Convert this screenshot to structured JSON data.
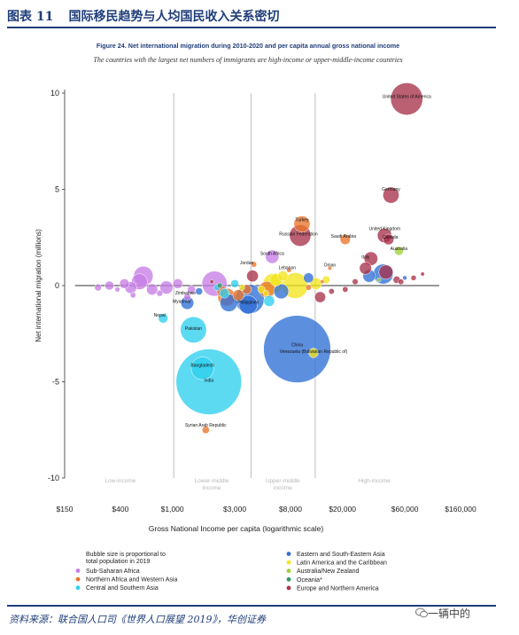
{
  "header": {
    "figure_number": "图表 11",
    "title": "国际移民趋势与人均国民收入关系密切"
  },
  "footer": {
    "source": "资料来源：联合国人口司《世界人口展望 2019》，华创证券",
    "watermark": "一辆中的"
  },
  "colors": {
    "brand": "#1f3d7a",
    "Sub-Saharan Africa": "#c77ee6",
    "Northern Africa and Western Asia": "#e9752a",
    "Central and Southern Asia": "#2ed0ee",
    "Eastern and South-Eastern Asia": "#2f6fd6",
    "Latin America and the Caribbean": "#f2e41c",
    "Australia/New Zealand": "#9ed236",
    "Oceania*": "#2e9b5f",
    "Europe and Northern America": "#a8324a"
  },
  "chart_data": {
    "type": "scatter",
    "title": "Figure 24. Net international migration during 2010-2020 and per capita annual gross national income",
    "subtitle": "The countries with the largest net numbers of immigrants are high-income or upper-middle-income countries",
    "xlabel": "Gross National Income per capita (logarithmic scale)",
    "ylabel": "Net international migration (millions)",
    "x_scale": "log",
    "xlim": [
      150,
      160000
    ],
    "ylim": [
      -10,
      10
    ],
    "x_ticks": [
      {
        "value": 150,
        "label": "$150"
      },
      {
        "value": 400,
        "label": "$400"
      },
      {
        "value": 1000,
        "label": "$1,000"
      },
      {
        "value": 3000,
        "label": "$3,000"
      },
      {
        "value": 8000,
        "label": "$8,000"
      },
      {
        "value": 20000,
        "label": "$20,000"
      },
      {
        "value": 60000,
        "label": "$60,000"
      },
      {
        "value": 160000,
        "label": "$160,000"
      }
    ],
    "y_ticks": [
      {
        "value": 10,
        "label": "10"
      },
      {
        "value": 5,
        "label": "5"
      },
      {
        "value": 0,
        "label": "0"
      },
      {
        "value": -5,
        "label": "-5"
      },
      {
        "value": -10,
        "label": "-10"
      }
    ],
    "income_thresholds": [
      1025,
      3995,
      12375
    ],
    "income_groups": [
      {
        "label": "Low-income",
        "x": 400
      },
      {
        "label": "Lower-middle\nincome",
        "x": 2000
      },
      {
        "label": "Upper-middle\nincome",
        "x": 7000
      },
      {
        "label": "High-income",
        "x": 35000
      }
    ],
    "legend_note": "Bubble size is proportional to\ntotal population in 2019",
    "legend": [
      {
        "name": "Sub-Saharan Africa",
        "column": 0
      },
      {
        "name": "Northern Africa and Western Asia",
        "column": 0
      },
      {
        "name": "Central and Southern Asia",
        "column": 0
      },
      {
        "name": "Eastern and South-Eastern Asia",
        "column": 1
      },
      {
        "name": "Latin America and the Caribbean",
        "column": 1
      },
      {
        "name": "Australia/New Zealand",
        "column": 1
      },
      {
        "name": "Oceania*",
        "column": 1
      },
      {
        "name": "Europe and Northern America",
        "column": 1
      }
    ],
    "points": [
      {
        "label": "United States of America",
        "x": 62000,
        "y": 9.7,
        "pop": 330,
        "region": "Europe and Northern America"
      },
      {
        "label": "Germany",
        "x": 47000,
        "y": 4.7,
        "pop": 83,
        "region": "Europe and Northern America"
      },
      {
        "label": "Turkey",
        "x": 9800,
        "y": 3.2,
        "pop": 83,
        "region": "Northern Africa and Western Asia"
      },
      {
        "label": "Russian Federation",
        "x": 9500,
        "y": 2.6,
        "pop": 146,
        "region": "Europe and Northern America"
      },
      {
        "label": "Saudi Arabia",
        "x": 21000,
        "y": 2.4,
        "pop": 34,
        "region": "Northern Africa and Western Asia"
      },
      {
        "label": "United Kingdom",
        "x": 42000,
        "y": 2.6,
        "pop": 67,
        "region": "Europe and Northern America"
      },
      {
        "label": "Canada",
        "x": 45000,
        "y": 2.4,
        "pop": 37,
        "region": "Europe and Northern America"
      },
      {
        "label": "Australia",
        "x": 54000,
        "y": 1.8,
        "pop": 25,
        "region": "Australia/New Zealand"
      },
      {
        "label": "South Africa",
        "x": 5800,
        "y": 1.5,
        "pop": 58,
        "region": "Sub-Saharan Africa"
      },
      {
        "label": "Italy",
        "x": 33000,
        "y": 1.4,
        "pop": 60,
        "region": "Europe and Northern America"
      },
      {
        "label": "Jordan",
        "x": 4200,
        "y": 1.1,
        "pop": 10,
        "region": "Northern Africa and Western Asia"
      },
      {
        "label": "Lebanon",
        "x": 7800,
        "y": 0.8,
        "pop": 7,
        "region": "Northern Africa and Western Asia"
      },
      {
        "label": "Oman",
        "x": 16000,
        "y": 0.9,
        "pop": 5,
        "region": "Northern Africa and Western Asia"
      },
      {
        "label": "Zimbabwe",
        "x": 1300,
        "y": -0.6,
        "pop": 15,
        "region": "Sub-Saharan Africa"
      },
      {
        "label": "Myanmar",
        "x": 1300,
        "y": -0.9,
        "pop": 54,
        "region": "Eastern and South-Eastern Asia"
      },
      {
        "label": "Nepal",
        "x": 850,
        "y": -1.7,
        "pop": 29,
        "region": "Central and Southern Asia"
      },
      {
        "label": "Philippines",
        "x": 3800,
        "y": -1.0,
        "pop": 108,
        "region": "Eastern and South-Eastern Asia"
      },
      {
        "label": "Pakistan",
        "x": 1450,
        "y": -2.3,
        "pop": 217,
        "region": "Central and Southern Asia"
      },
      {
        "label": "China",
        "x": 9000,
        "y": -3.3,
        "pop": 1434,
        "region": "Eastern and South-Eastern Asia"
      },
      {
        "label": "Venezuela (Bolivarian Republic of)",
        "x": 12000,
        "y": -3.5,
        "pop": 29,
        "region": "Latin America and the Caribbean"
      },
      {
        "label": "Bangladesh",
        "x": 1700,
        "y": -4.3,
        "pop": 163,
        "region": "Central and Southern Asia"
      },
      {
        "label": "India",
        "x": 1900,
        "y": -5.0,
        "pop": 1366,
        "region": "Central and Southern Asia"
      },
      {
        "label": "Syrian Arab Republic",
        "x": 1800,
        "y": -7.5,
        "pop": 17,
        "region": "Northern Africa and Western Asia"
      },
      {
        "label": "",
        "x": 600,
        "y": 0.5,
        "pop": 120,
        "region": "Sub-Saharan Africa"
      },
      {
        "label": "",
        "x": 560,
        "y": 0.2,
        "pop": 80,
        "region": "Sub-Saharan Africa"
      },
      {
        "label": "",
        "x": 430,
        "y": 0.1,
        "pop": 30,
        "region": "Sub-Saharan Africa"
      },
      {
        "label": "",
        "x": 330,
        "y": 0.0,
        "pop": 25,
        "region": "Sub-Saharan Africa"
      },
      {
        "label": "",
        "x": 270,
        "y": -0.1,
        "pop": 15,
        "region": "Sub-Saharan Africa"
      },
      {
        "label": "",
        "x": 480,
        "y": -0.1,
        "pop": 45,
        "region": "Sub-Saharan Africa"
      },
      {
        "label": "",
        "x": 700,
        "y": -0.2,
        "pop": 40,
        "region": "Sub-Saharan Africa"
      },
      {
        "label": "",
        "x": 900,
        "y": -0.1,
        "pop": 55,
        "region": "Sub-Saharan Africa"
      },
      {
        "label": "",
        "x": 1100,
        "y": 0.1,
        "pop": 30,
        "region": "Sub-Saharan Africa"
      },
      {
        "label": "",
        "x": 1400,
        "y": -0.2,
        "pop": 20,
        "region": "Sub-Saharan Africa"
      },
      {
        "label": "",
        "x": 2100,
        "y": 0.1,
        "pop": 200,
        "region": "Sub-Saharan Africa"
      },
      {
        "label": "",
        "x": 800,
        "y": -0.4,
        "pop": 12,
        "region": "Sub-Saharan Africa"
      },
      {
        "label": "",
        "x": 500,
        "y": -0.5,
        "pop": 10,
        "region": "Sub-Saharan Africa"
      },
      {
        "label": "",
        "x": 380,
        "y": -0.2,
        "pop": 8,
        "region": "Sub-Saharan Africa"
      },
      {
        "label": "",
        "x": 2600,
        "y": -0.6,
        "pop": 100,
        "region": "Northern Africa and Western Asia"
      },
      {
        "label": "",
        "x": 3200,
        "y": -0.5,
        "pop": 40,
        "region": "Northern Africa and Western Asia"
      },
      {
        "label": "",
        "x": 2400,
        "y": -0.3,
        "pop": 35,
        "region": "Northern Africa and Western Asia"
      },
      {
        "label": "",
        "x": 3700,
        "y": -0.2,
        "pop": 30,
        "region": "Northern Africa and Western Asia"
      },
      {
        "label": "",
        "x": 5300,
        "y": -0.2,
        "pop": 83,
        "region": "Northern Africa and Western Asia"
      },
      {
        "label": "",
        "x": 11000,
        "y": -0.1,
        "pop": 10,
        "region": "Northern Africa and Western Asia"
      },
      {
        "label": "",
        "x": 14000,
        "y": 0.2,
        "pop": 4,
        "region": "Northern Africa and Western Asia"
      },
      {
        "label": "",
        "x": 2200,
        "y": -0.1,
        "pop": 12,
        "region": "Central and Southern Asia"
      },
      {
        "label": "",
        "x": 2500,
        "y": -0.4,
        "pop": 30,
        "region": "Central and Southern Asia"
      },
      {
        "label": "",
        "x": 5500,
        "y": -0.8,
        "pop": 38,
        "region": "Central and Southern Asia"
      },
      {
        "label": "",
        "x": 3000,
        "y": 0.1,
        "pop": 20,
        "region": "Central and Southern Asia"
      },
      {
        "label": "",
        "x": 2700,
        "y": -0.9,
        "pop": 97,
        "region": "Eastern and South-Eastern Asia"
      },
      {
        "label": "",
        "x": 3900,
        "y": -0.7,
        "pop": 270,
        "region": "Eastern and South-Eastern Asia"
      },
      {
        "label": "",
        "x": 6800,
        "y": -0.3,
        "pop": 70,
        "region": "Eastern and South-Eastern Asia"
      },
      {
        "label": "",
        "x": 11000,
        "y": 0.4,
        "pop": 32,
        "region": "Eastern and South-Eastern Asia"
      },
      {
        "label": "",
        "x": 32000,
        "y": 0.5,
        "pop": 51,
        "region": "Eastern and South-Eastern Asia"
      },
      {
        "label": "",
        "x": 41000,
        "y": 0.6,
        "pop": 126,
        "region": "Eastern and South-Eastern Asia"
      },
      {
        "label": "",
        "x": 60000,
        "y": 0.4,
        "pop": 6,
        "region": "Eastern and South-Eastern Asia"
      },
      {
        "label": "",
        "x": 1600,
        "y": -0.3,
        "pop": 16,
        "region": "Eastern and South-Eastern Asia"
      },
      {
        "label": "",
        "x": 5900,
        "y": 0.1,
        "pop": 130,
        "region": "Latin America and the Caribbean"
      },
      {
        "label": "",
        "x": 8700,
        "y": 0.0,
        "pop": 211,
        "region": "Latin America and the Caribbean"
      },
      {
        "label": "",
        "x": 6200,
        "y": 0.3,
        "pop": 50,
        "region": "Latin America and the Caribbean"
      },
      {
        "label": "",
        "x": 12500,
        "y": 0.1,
        "pop": 45,
        "region": "Latin America and the Caribbean"
      },
      {
        "label": "",
        "x": 4800,
        "y": -0.2,
        "pop": 17,
        "region": "Latin America and the Caribbean"
      },
      {
        "label": "",
        "x": 3400,
        "y": -0.1,
        "pop": 11,
        "region": "Latin America and the Caribbean"
      },
      {
        "label": "",
        "x": 15000,
        "y": 0.3,
        "pop": 19,
        "region": "Latin America and the Caribbean"
      },
      {
        "label": "",
        "x": 7000,
        "y": 0.5,
        "pop": 33,
        "region": "Latin America and the Caribbean"
      },
      {
        "label": "",
        "x": 5200,
        "y": -0.4,
        "pop": 11,
        "region": "Latin America and the Caribbean"
      },
      {
        "label": "",
        "x": 2300,
        "y": 0.0,
        "pop": 9,
        "region": "Oceania*"
      },
      {
        "label": "",
        "x": 38000,
        "y": 0.3,
        "pop": 5,
        "region": "Australia/New Zealand"
      },
      {
        "label": "",
        "x": 4100,
        "y": 0.5,
        "pop": 44,
        "region": "Europe and Northern America"
      },
      {
        "label": "",
        "x": 13500,
        "y": -0.6,
        "pop": 38,
        "region": "Europe and Northern America"
      },
      {
        "label": "",
        "x": 16500,
        "y": -0.3,
        "pop": 10,
        "region": "Europe and Northern America"
      },
      {
        "label": "",
        "x": 21000,
        "y": -0.2,
        "pop": 10,
        "region": "Europe and Northern America"
      },
      {
        "label": "",
        "x": 30000,
        "y": 0.9,
        "pop": 47,
        "region": "Europe and Northern America"
      },
      {
        "label": "",
        "x": 43000,
        "y": 0.7,
        "pop": 65,
        "region": "Europe and Northern America"
      },
      {
        "label": "",
        "x": 52000,
        "y": 0.3,
        "pop": 17,
        "region": "Europe and Northern America"
      },
      {
        "label": "",
        "x": 56000,
        "y": 0.2,
        "pop": 10,
        "region": "Europe and Northern America"
      },
      {
        "label": "",
        "x": 70000,
        "y": 0.4,
        "pop": 9,
        "region": "Europe and Northern America"
      },
      {
        "label": "",
        "x": 82000,
        "y": 0.6,
        "pop": 5,
        "region": "Europe and Northern America"
      },
      {
        "label": "",
        "x": 25000,
        "y": 0.2,
        "pop": 11,
        "region": "Europe and Northern America"
      },
      {
        "label": "",
        "x": 2000,
        "y": 0.2,
        "pop": 3,
        "region": "Europe and Northern America"
      }
    ]
  }
}
